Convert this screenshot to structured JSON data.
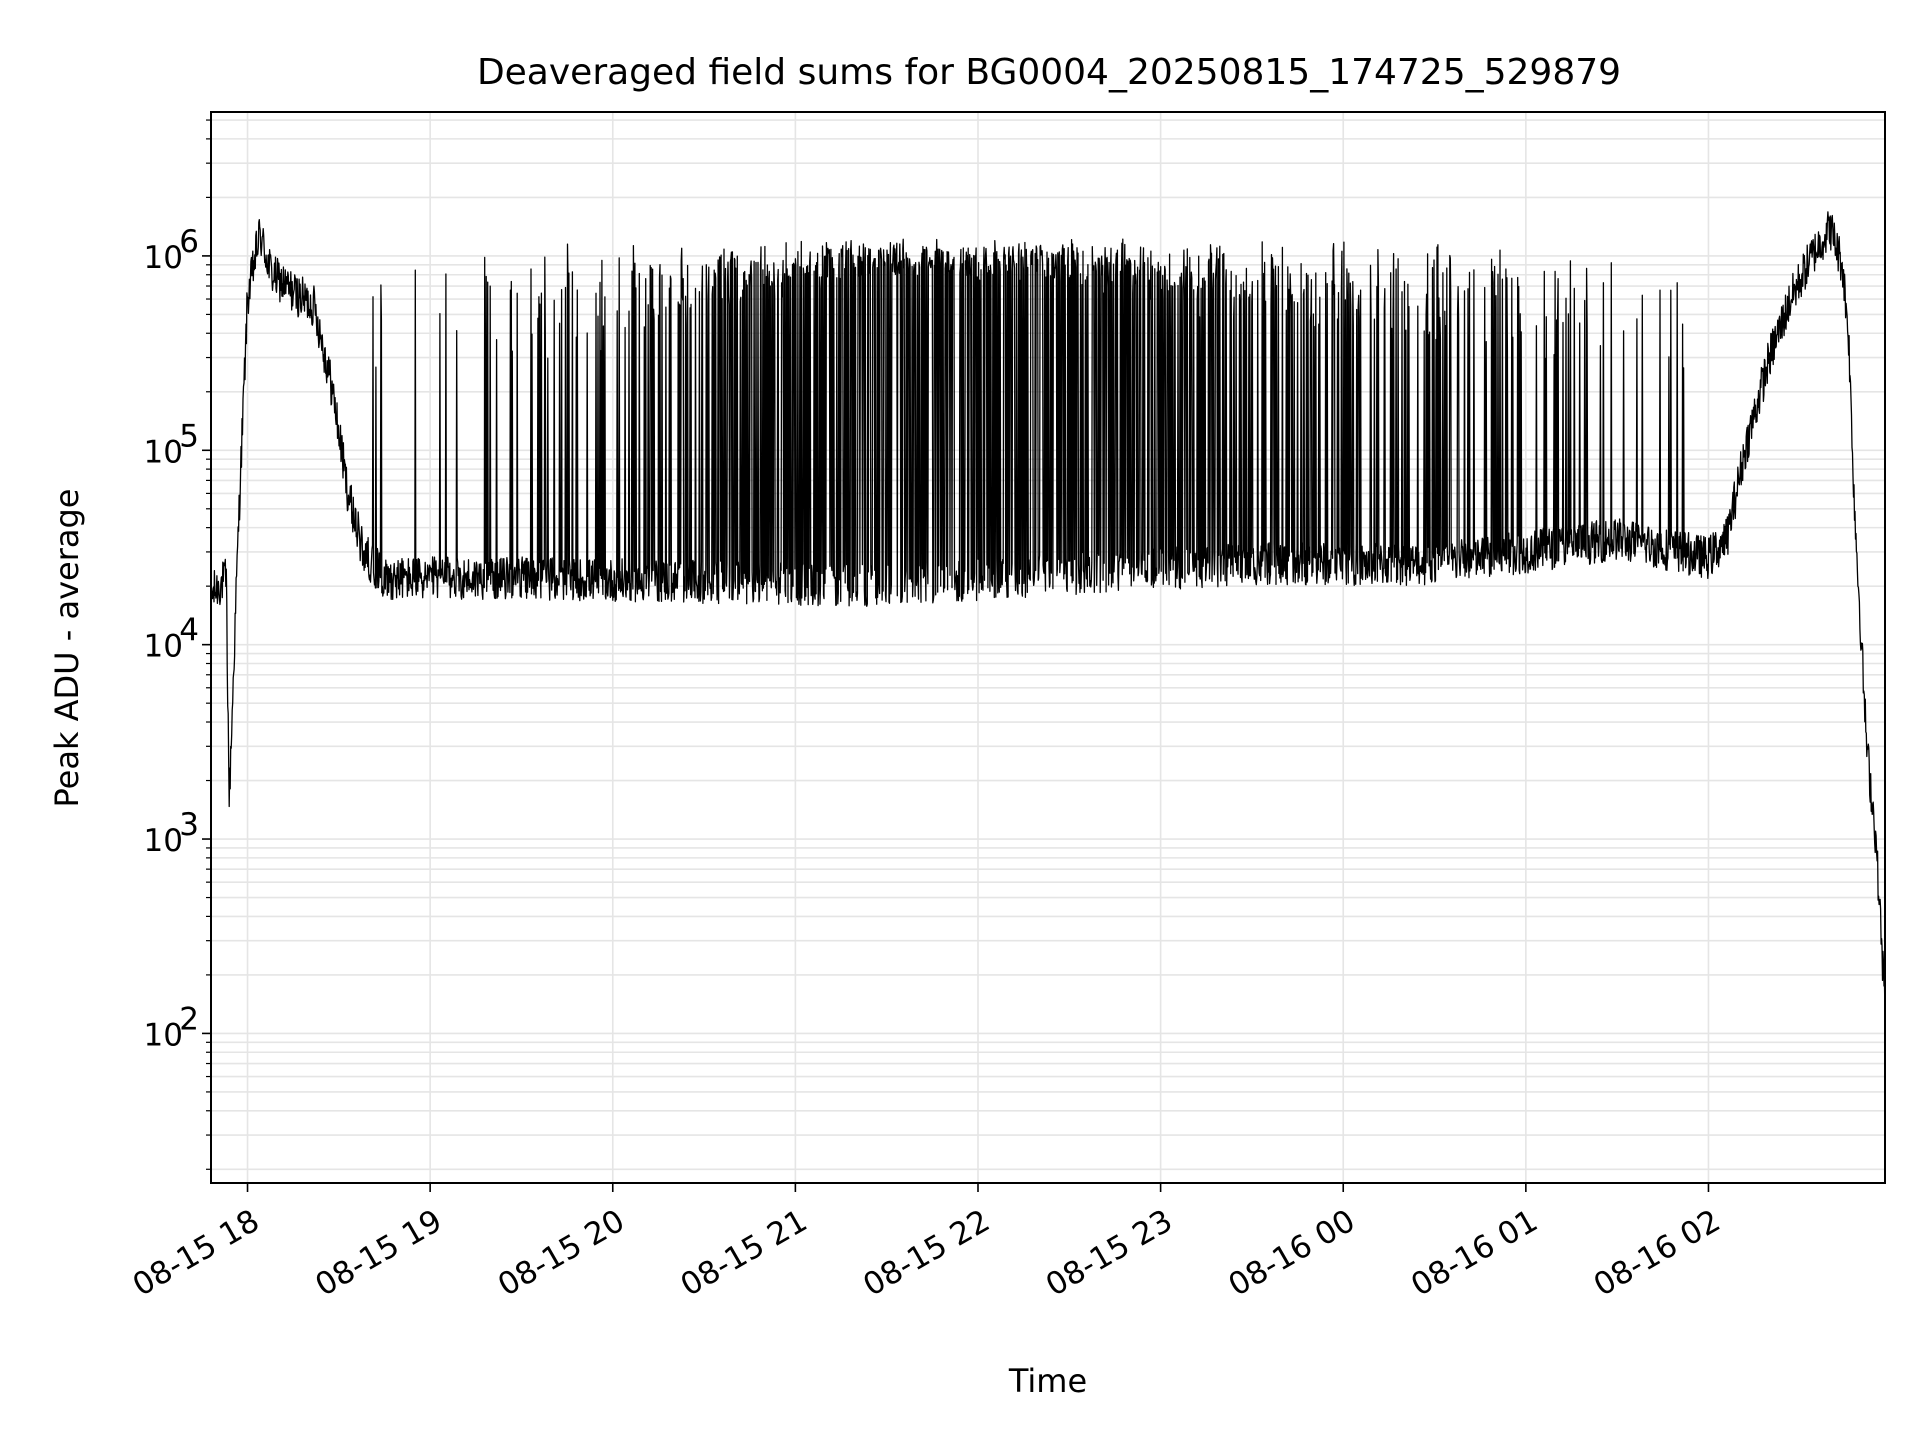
{
  "chart_data": {
    "type": "line",
    "title": "Deaveraged field sums for BG0004_20250815_174725_529879",
    "xlabel": "Time",
    "ylabel": "Peak ADU - average",
    "yscale": "log",
    "ylim": [
      17,
      5500000
    ],
    "xlim": [
      "2025-08-15 17:48",
      "2025-08-16 02:58"
    ],
    "grid": true,
    "line_color": "#000000",
    "grid_color": "#e5e5e5",
    "x_ticks": [
      {
        "t": "2025-08-15 18:00",
        "label": "08-15 18"
      },
      {
        "t": "2025-08-15 19:00",
        "label": "08-15 19"
      },
      {
        "t": "2025-08-15 20:00",
        "label": "08-15 20"
      },
      {
        "t": "2025-08-15 21:00",
        "label": "08-15 21"
      },
      {
        "t": "2025-08-15 22:00",
        "label": "08-15 22"
      },
      {
        "t": "2025-08-15 23:00",
        "label": "08-15 23"
      },
      {
        "t": "2025-08-16 00:00",
        "label": "08-16 00"
      },
      {
        "t": "2025-08-16 01:00",
        "label": "08-16 01"
      },
      {
        "t": "2025-08-16 02:00",
        "label": "08-16 02"
      }
    ],
    "y_ticks": [
      {
        "value": 100,
        "base": "10",
        "exp": "2"
      },
      {
        "value": 1000,
        "base": "10",
        "exp": "3"
      },
      {
        "value": 10000,
        "base": "10",
        "exp": "4"
      },
      {
        "value": 100000,
        "base": "10",
        "exp": "5"
      },
      {
        "value": 1000000,
        "base": "10",
        "exp": "6"
      }
    ],
    "series": [
      {
        "baseline": [
          {
            "t": "2025-08-15 17:48",
            "y": 18000
          },
          {
            "t": "2025-08-15 17:53",
            "y": 22000
          },
          {
            "t": "2025-08-15 17:54",
            "y": 1600
          },
          {
            "t": "2025-08-15 17:57",
            "y": 40000
          },
          {
            "t": "2025-08-15 18:00",
            "y": 600000
          },
          {
            "t": "2025-08-15 18:04",
            "y": 1300000
          },
          {
            "t": "2025-08-15 18:08",
            "y": 800000
          },
          {
            "t": "2025-08-15 18:15",
            "y": 650000
          },
          {
            "t": "2025-08-15 18:22",
            "y": 550000
          },
          {
            "t": "2025-08-15 18:28",
            "y": 200000
          },
          {
            "t": "2025-08-15 18:33",
            "y": 60000
          },
          {
            "t": "2025-08-15 18:38",
            "y": 30000
          },
          {
            "t": "2025-08-15 18:45",
            "y": 22000
          },
          {
            "t": "2025-08-15 19:30",
            "y": 22000
          },
          {
            "t": "2025-08-15 20:30",
            "y": 21000
          },
          {
            "t": "2025-08-15 21:30",
            "y": 20000
          },
          {
            "t": "2025-08-15 22:30",
            "y": 23000
          },
          {
            "t": "2025-08-15 23:30",
            "y": 26000
          },
          {
            "t": "2025-08-16 00:30",
            "y": 26000
          },
          {
            "t": "2025-08-16 01:00",
            "y": 30000
          },
          {
            "t": "2025-08-16 01:30",
            "y": 35000
          },
          {
            "t": "2025-08-16 02:00",
            "y": 28000
          },
          {
            "t": "2025-08-16 02:06",
            "y": 35000
          },
          {
            "t": "2025-08-16 02:12",
            "y": 100000
          },
          {
            "t": "2025-08-16 02:20",
            "y": 300000
          },
          {
            "t": "2025-08-16 02:27",
            "y": 600000
          },
          {
            "t": "2025-08-16 02:34",
            "y": 1000000
          },
          {
            "t": "2025-08-16 02:40",
            "y": 1400000
          },
          {
            "t": "2025-08-16 02:44",
            "y": 900000
          },
          {
            "t": "2025-08-16 02:46",
            "y": 400000
          },
          {
            "t": "2025-08-16 02:48",
            "y": 50000
          },
          {
            "t": "2025-08-16 02:52",
            "y": 3000
          },
          {
            "t": "2025-08-16 02:55",
            "y": 1000
          },
          {
            "t": "2025-08-16 02:58",
            "y": 140
          }
        ],
        "spike_density": [
          {
            "t": "2025-08-15 18:35",
            "d": 0.04
          },
          {
            "t": "2025-08-15 19:15",
            "d": 0.15
          },
          {
            "t": "2025-08-15 20:00",
            "d": 0.3
          },
          {
            "t": "2025-08-15 20:40",
            "d": 0.65
          },
          {
            "t": "2025-08-15 21:30",
            "d": 0.95
          },
          {
            "t": "2025-08-15 22:30",
            "d": 0.9
          },
          {
            "t": "2025-08-15 23:15",
            "d": 0.6
          },
          {
            "t": "2025-08-16 00:30",
            "d": 0.35
          },
          {
            "t": "2025-08-16 01:30",
            "d": 0.15
          },
          {
            "t": "2025-08-16 02:05",
            "d": 0.05
          }
        ],
        "spike_peak": 1000000
      }
    ]
  }
}
